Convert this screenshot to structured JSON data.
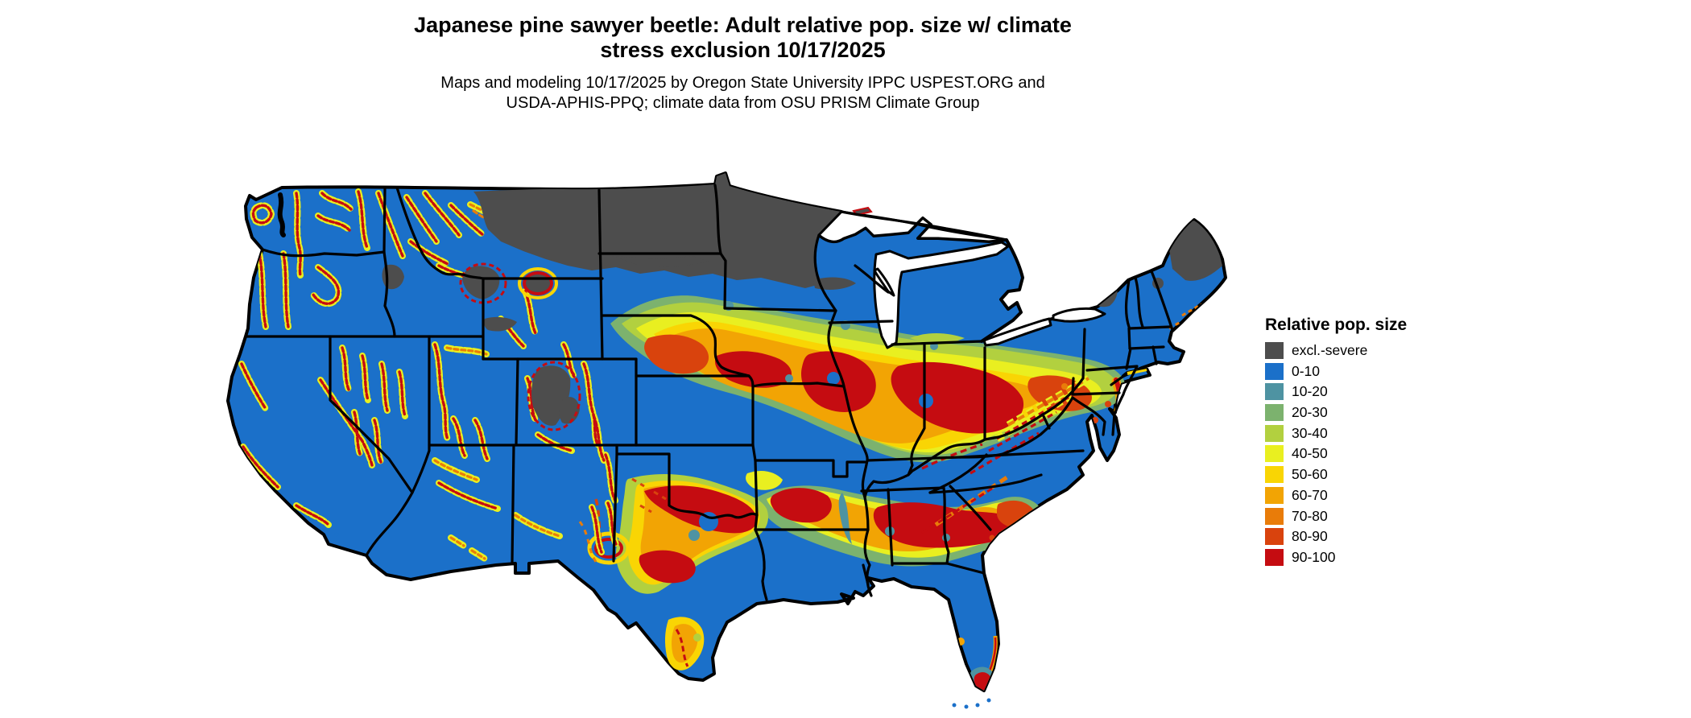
{
  "header": {
    "title_line1": "Japanese pine sawyer beetle: Adult relative pop. size w/ climate",
    "title_line2": "stress exclusion 10/17/2025",
    "subtitle_line1": "Maps and modeling 10/17/2025 by Oregon State University IPPC USPEST.ORG and",
    "subtitle_line2": "USDA-APHIS-PPQ; climate data from OSU PRISM Climate Group"
  },
  "legend": {
    "title": "Relative pop. size",
    "items": [
      {
        "label": "excl.-severe",
        "color": "#4D4D4D"
      },
      {
        "label": "0-10",
        "color": "#1B70C9"
      },
      {
        "label": "10-20",
        "color": "#4E93A2"
      },
      {
        "label": "20-30",
        "color": "#7CB26E"
      },
      {
        "label": "30-40",
        "color": "#B2D03F"
      },
      {
        "label": "40-50",
        "color": "#E9EF20"
      },
      {
        "label": "50-60",
        "color": "#F9D504"
      },
      {
        "label": "60-70",
        "color": "#F2A404"
      },
      {
        "label": "70-80",
        "color": "#E97C09"
      },
      {
        "label": "80-90",
        "color": "#D9430D"
      },
      {
        "label": "90-100",
        "color": "#C50C11"
      }
    ]
  },
  "map": {
    "description": "Contiguous United States raster map of relative adult population size",
    "base_class": "0-10",
    "excluded_class": "excl.-severe"
  },
  "palette": {
    "excl": "#4D4D4D",
    "b010": "#1B70C9",
    "t1020": "#4E93A2",
    "g2030": "#7CB26E",
    "yg3040": "#B2D03F",
    "y4050": "#E9EF20",
    "gd5060": "#F9D504",
    "o6070": "#F2A404",
    "do7080": "#E97C09",
    "r8090": "#D9430D",
    "r90100": "#C50C11",
    "water": "#FFFFFF",
    "ink": "#000000"
  }
}
